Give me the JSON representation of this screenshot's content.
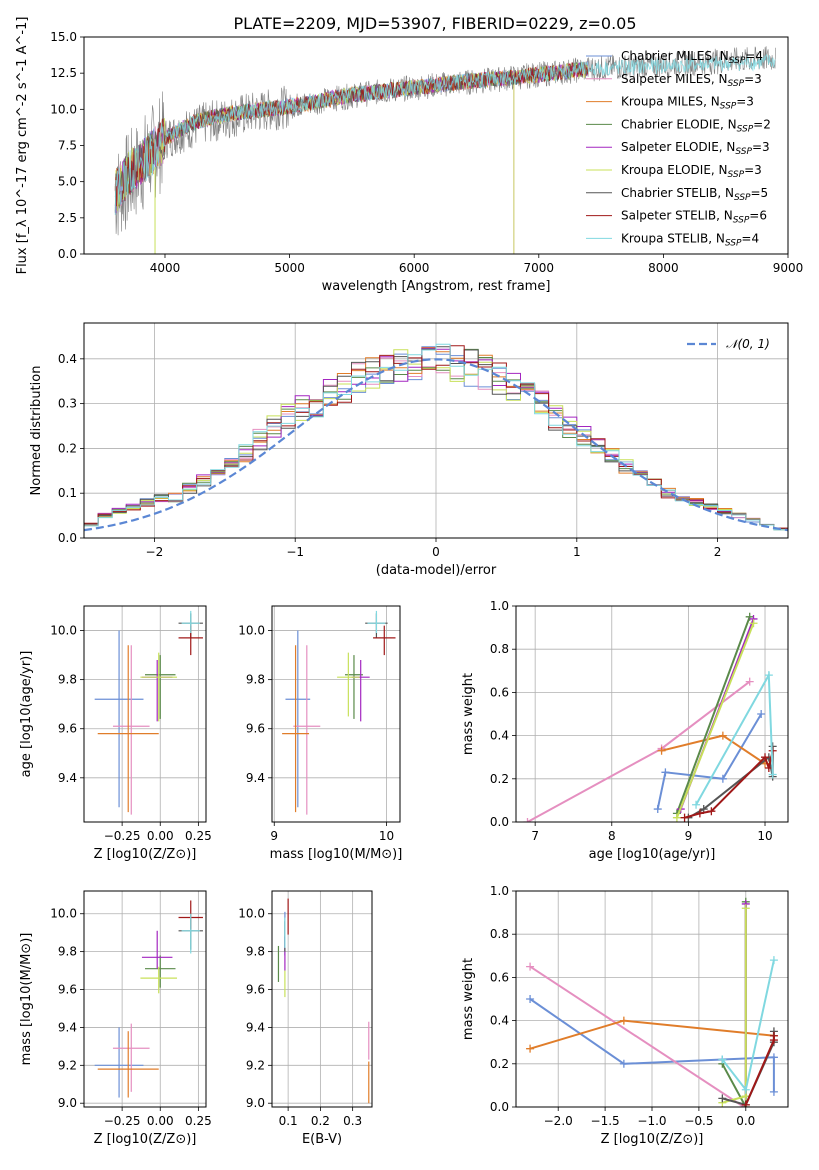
{
  "figure": {
    "title": "PLATE=2209, MJD=53907, FIBERID=0229, z=0.05",
    "colors": {
      "Chabrier MILES": "#6b8fd6",
      "Salpeter MILES": "#e58fc0",
      "Kroupa MILES": "#e07d2a",
      "Chabrier ELODIE": "#5a8a4a",
      "Salpeter ELODIE": "#a326c0",
      "Kroupa ELODIE": "#c8e05a",
      "Chabrier STELIB": "#555555",
      "Salpeter STELIB": "#a01818",
      "Kroupa STELIB": "#80d8e0",
      "data": "#808080",
      "gaussian": "#5b87d4"
    }
  },
  "chart_data": [
    {
      "id": "spectrum",
      "type": "line",
      "title": "PLATE=2209, MJD=53907, FIBERID=0229, z=0.05",
      "xlabel": "wavelength [Angstrom, rest frame]",
      "ylabel": "Flux [f_λ 10^-17 erg cm^-2 s^-1 A^-1]",
      "xlim": [
        3350,
        9000
      ],
      "ylim": [
        0,
        15
      ],
      "xticks": [
        "4000",
        "5000",
        "6000",
        "7000",
        "8000",
        "9000"
      ],
      "yticks": [
        "0.0",
        "2.5",
        "5.0",
        "7.5",
        "10.0",
        "12.5",
        "15.0"
      ],
      "legend_placement": "upper-right",
      "series": [
        {
          "name": "Chabrier MILES",
          "nssp": "4"
        },
        {
          "name": "Salpeter MILES",
          "nssp": "3"
        },
        {
          "name": "Kroupa MILES",
          "nssp": "3"
        },
        {
          "name": "Chabrier ELODIE",
          "nssp": "2"
        },
        {
          "name": "Salpeter ELODIE",
          "nssp": "3"
        },
        {
          "name": "Kroupa ELODIE",
          "nssp": "3"
        },
        {
          "name": "Chabrier STELIB",
          "nssp": "5"
        },
        {
          "name": "Salpeter STELIB",
          "nssp": "6"
        },
        {
          "name": "Kroupa STELIB",
          "nssp": "4"
        }
      ],
      "model_continuum": {
        "x": [
          3600,
          3700,
          3900,
          4000,
          4200,
          4400,
          4600,
          5000,
          5200,
          5500,
          6000,
          6500,
          6800,
          7000,
          7300,
          7400
        ],
        "y": [
          4.3,
          5.5,
          7.0,
          8.0,
          9.0,
          9.5,
          9.8,
          10.2,
          10.5,
          11.0,
          11.5,
          12.0,
          12.2,
          12.4,
          12.7,
          12.8
        ]
      },
      "data_continuum": {
        "x": [
          3600,
          3800,
          4000,
          4300,
          4600,
          5000,
          5400,
          5800,
          6200,
          6600,
          7000,
          7400,
          7800,
          8200,
          8600,
          8900
        ],
        "y": [
          4.0,
          6.0,
          8.0,
          9.0,
          9.6,
          10.2,
          10.8,
          11.3,
          11.7,
          12.0,
          12.4,
          12.8,
          13.0,
          13.2,
          13.4,
          13.5
        ]
      }
    },
    {
      "id": "residuals",
      "type": "bar",
      "xlabel": "(data-model)/error",
      "ylabel": "Normed distribution",
      "xlim": [
        -2.5,
        2.5
      ],
      "ylim": [
        0,
        0.48
      ],
      "xticks": [
        "−2",
        "−1",
        "0",
        "1",
        "2"
      ],
      "yticks": [
        "0.0",
        "0.1",
        "0.2",
        "0.3",
        "0.4"
      ],
      "bins": [
        -2.5,
        -2.4,
        -2.3,
        -2.2,
        -2.1,
        -2.0,
        -1.9,
        -1.8,
        -1.7,
        -1.6,
        -1.5,
        -1.4,
        -1.3,
        -1.2,
        -1.1,
        -1.0,
        -0.9,
        -0.8,
        -0.7,
        -0.6,
        -0.5,
        -0.4,
        -0.3,
        -0.2,
        -0.1,
        0.0,
        0.1,
        0.2,
        0.3,
        0.4,
        0.5,
        0.6,
        0.7,
        0.8,
        0.9,
        1.0,
        1.1,
        1.2,
        1.3,
        1.4,
        1.5,
        1.6,
        1.7,
        1.8,
        1.9,
        2.0,
        2.1,
        2.2,
        2.3,
        2.4,
        2.5
      ],
      "histogram_mean": [
        0.03,
        0.05,
        0.06,
        0.07,
        0.08,
        0.09,
        0.09,
        0.11,
        0.13,
        0.14,
        0.16,
        0.19,
        0.22,
        0.25,
        0.27,
        0.29,
        0.3,
        0.32,
        0.34,
        0.36,
        0.37,
        0.38,
        0.39,
        0.39,
        0.4,
        0.4,
        0.39,
        0.38,
        0.37,
        0.36,
        0.34,
        0.32,
        0.3,
        0.27,
        0.25,
        0.23,
        0.2,
        0.18,
        0.16,
        0.14,
        0.12,
        0.1,
        0.09,
        0.08,
        0.07,
        0.06,
        0.05,
        0.04,
        0.03,
        0.02
      ],
      "curve": {
        "name": "𝒩(0, 1)",
        "mu": 0,
        "sigma": 1
      }
    },
    {
      "id": "age-vs-Z",
      "type": "scatter",
      "xlabel": "Z [log10(Z/Z⊙)]",
      "ylabel": "age [log10(age/yr)]",
      "xlim": [
        -0.5,
        0.3
      ],
      "ylim": [
        9.22,
        10.1
      ],
      "xticks": [
        "−0.25",
        "0.00",
        "0.25"
      ],
      "yticks": [
        "9.4",
        "9.6",
        "9.8",
        "10.0"
      ],
      "points": [
        {
          "series": "Chabrier MILES",
          "x": -0.27,
          "y": 9.72,
          "xerr": 0.16,
          "yerr": [
            0.44,
            0.28
          ]
        },
        {
          "series": "Salpeter MILES",
          "x": -0.19,
          "y": 9.61,
          "xerr": 0.12,
          "yerr": [
            0.36,
            0.33
          ]
        },
        {
          "series": "Kroupa MILES",
          "x": -0.21,
          "y": 9.58,
          "xerr": 0.2,
          "yerr": [
            0.32,
            0.36
          ]
        },
        {
          "series": "Chabrier ELODIE",
          "x": 0.0,
          "y": 9.82,
          "xerr": 0.1,
          "yerr": [
            0.18,
            0.08
          ]
        },
        {
          "series": "Salpeter ELODIE",
          "x": -0.02,
          "y": 9.81,
          "xerr": 0.1,
          "yerr": [
            0.18,
            0.07
          ]
        },
        {
          "series": "Kroupa ELODIE",
          "x": -0.01,
          "y": 9.81,
          "xerr": 0.12,
          "yerr": [
            0.18,
            0.1
          ]
        },
        {
          "series": "Chabrier STELIB",
          "x": 0.2,
          "y": 10.03,
          "xerr": 0.08,
          "yerr": [
            0.06,
            0.04
          ]
        },
        {
          "series": "Salpeter STELIB",
          "x": 0.2,
          "y": 9.97,
          "xerr": 0.08,
          "yerr": [
            0.07,
            0.05
          ]
        },
        {
          "series": "Kroupa STELIB",
          "x": 0.2,
          "y": 10.03,
          "xerr": 0.06,
          "yerr": [
            0.04,
            0.05
          ]
        }
      ]
    },
    {
      "id": "age-vs-mass",
      "type": "scatter",
      "xlabel": "mass [log10(M/M⊙)]",
      "ylabel": "",
      "xlim": [
        8.98,
        10.12
      ],
      "ylim": [
        9.22,
        10.1
      ],
      "xticks": [
        "9",
        "10"
      ],
      "yticks": [
        "9.4",
        "9.6",
        "9.8",
        "10.0"
      ],
      "points": [
        {
          "series": "Chabrier MILES",
          "x": 9.21,
          "y": 9.72,
          "xerr": 0.11,
          "yerr": [
            0.44,
            0.28
          ]
        },
        {
          "series": "Salpeter MILES",
          "x": 9.29,
          "y": 9.61,
          "xerr": 0.12,
          "yerr": [
            0.36,
            0.33
          ]
        },
        {
          "series": "Kroupa MILES",
          "x": 9.19,
          "y": 9.58,
          "xerr": 0.12,
          "yerr": [
            0.32,
            0.36
          ]
        },
        {
          "series": "Chabrier ELODIE",
          "x": 9.71,
          "y": 9.82,
          "xerr": 0.08,
          "yerr": [
            0.18,
            0.08
          ]
        },
        {
          "series": "Salpeter ELODIE",
          "x": 9.77,
          "y": 9.81,
          "xerr": 0.08,
          "yerr": [
            0.18,
            0.07
          ]
        },
        {
          "series": "Kroupa ELODIE",
          "x": 9.66,
          "y": 9.81,
          "xerr": 0.1,
          "yerr": [
            0.16,
            0.1
          ]
        },
        {
          "series": "Chabrier STELIB",
          "x": 9.91,
          "y": 10.03,
          "xerr": 0.1,
          "yerr": [
            0.06,
            0.04
          ]
        },
        {
          "series": "Salpeter STELIB",
          "x": 9.98,
          "y": 9.97,
          "xerr": 0.1,
          "yerr": [
            0.07,
            0.05
          ]
        },
        {
          "series": "Kroupa STELIB",
          "x": 9.91,
          "y": 10.03,
          "xerr": 0.08,
          "yerr": [
            0.04,
            0.05
          ]
        }
      ]
    },
    {
      "id": "weight-vs-age",
      "type": "line",
      "xlabel": "age [log10(age/yr)]",
      "ylabel": "mass weight",
      "xlim": [
        6.75,
        10.3
      ],
      "ylim": [
        0,
        1
      ],
      "xticks": [
        "7",
        "8",
        "9",
        "10"
      ],
      "yticks": [
        "0.0",
        "0.2",
        "0.4",
        "0.6",
        "0.8",
        "1.0"
      ],
      "series": [
        {
          "name": "Chabrier MILES",
          "x": [
            8.6,
            8.7,
            9.45,
            9.95
          ],
          "y": [
            0.06,
            0.23,
            0.2,
            0.5
          ]
        },
        {
          "name": "Salpeter MILES",
          "x": [
            6.9,
            8.65,
            9.8
          ],
          "y": [
            0.0,
            0.34,
            0.65
          ]
        },
        {
          "name": "Kroupa MILES",
          "x": [
            8.65,
            9.45,
            10.0
          ],
          "y": [
            0.33,
            0.4,
            0.27
          ]
        },
        {
          "name": "Chabrier ELODIE",
          "x": [
            8.85,
            9.8
          ],
          "y": [
            0.04,
            0.95
          ]
        },
        {
          "name": "Salpeter ELODIE",
          "x": [
            8.9,
            9.85
          ],
          "y": [
            0.06,
            0.94
          ]
        },
        {
          "name": "Kroupa ELODIE",
          "x": [
            8.85,
            9.85
          ],
          "y": [
            0.02,
            0.92
          ]
        },
        {
          "name": "Chabrier STELIB",
          "x": [
            9.0,
            9.2,
            10.05,
            10.1,
            10.1
          ],
          "y": [
            0.02,
            0.06,
            0.3,
            0.21,
            0.35
          ]
        },
        {
          "name": "Salpeter STELIB",
          "x": [
            8.95,
            9.15,
            9.3,
            10.0,
            10.05,
            10.1
          ],
          "y": [
            0.02,
            0.04,
            0.05,
            0.3,
            0.25,
            0.33
          ]
        },
        {
          "name": "Kroupa STELIB",
          "x": [
            9.1,
            10.05,
            10.1
          ],
          "y": [
            0.08,
            0.68,
            0.22
          ]
        }
      ]
    },
    {
      "id": "mass-vs-Z",
      "type": "scatter",
      "xlabel": "Z [log10(Z/Z⊙)]",
      "ylabel": "mass [log10(M/M⊙)]",
      "xlim": [
        -0.5,
        0.3
      ],
      "ylim": [
        8.98,
        10.12
      ],
      "xticks": [
        "−0.25",
        "0.00",
        "0.25"
      ],
      "yticks": [
        "9.0",
        "9.2",
        "9.4",
        "9.6",
        "9.8",
        "10.0"
      ],
      "points": [
        {
          "series": "Chabrier MILES",
          "x": -0.27,
          "y": 9.2,
          "xerr": 0.16,
          "yerr": [
            0.17,
            0.2
          ]
        },
        {
          "series": "Salpeter MILES",
          "x": -0.19,
          "y": 9.29,
          "xerr": 0.12,
          "yerr": [
            0.23,
            0.13
          ]
        },
        {
          "series": "Kroupa MILES",
          "x": -0.21,
          "y": 9.18,
          "xerr": 0.2,
          "yerr": [
            0.15,
            0.2
          ]
        },
        {
          "series": "Chabrier ELODIE",
          "x": 0.0,
          "y": 9.71,
          "xerr": 0.1,
          "yerr": [
            0.1,
            0.07
          ]
        },
        {
          "series": "Salpeter ELODIE",
          "x": -0.02,
          "y": 9.77,
          "xerr": 0.1,
          "yerr": [
            0.06,
            0.14
          ]
        },
        {
          "series": "Kroupa ELODIE",
          "x": -0.01,
          "y": 9.66,
          "xerr": 0.12,
          "yerr": [
            0.08,
            0.06
          ]
        },
        {
          "series": "Chabrier STELIB",
          "x": 0.2,
          "y": 9.91,
          "xerr": 0.08,
          "yerr": [
            0.1,
            0.06
          ]
        },
        {
          "series": "Salpeter STELIB",
          "x": 0.2,
          "y": 9.98,
          "xerr": 0.08,
          "yerr": [
            0.06,
            0.09
          ]
        },
        {
          "series": "Kroupa STELIB",
          "x": 0.2,
          "y": 9.91,
          "xerr": 0.06,
          "yerr": [
            0.12,
            0.09
          ]
        }
      ]
    },
    {
      "id": "mass-vs-ebv",
      "type": "scatter",
      "xlabel": "E(B-V)",
      "ylabel": "",
      "xlim": [
        0.05,
        0.36
      ],
      "ylim": [
        8.98,
        10.12
      ],
      "xticks": [
        "0.1",
        "0.2",
        "0.3"
      ],
      "yticks": [
        "9.0",
        "9.2",
        "9.4",
        "9.6",
        "9.8",
        "10.0"
      ],
      "points": [
        {
          "series": "Chabrier MILES",
          "x": 0.09,
          "y": 9.88,
          "xerr": 0.0,
          "yerr": [
            0.1,
            0.13
          ]
        },
        {
          "series": "Salpeter MILES",
          "x": 0.35,
          "y": 9.33,
          "xerr": 0.0,
          "yerr": [
            0.1,
            0.1
          ]
        },
        {
          "series": "Kroupa MILES",
          "x": 0.35,
          "y": 9.1,
          "xerr": 0.0,
          "yerr": [
            0.1,
            0.12
          ]
        },
        {
          "series": "Chabrier ELODIE",
          "x": 0.07,
          "y": 9.74,
          "xerr": 0.0,
          "yerr": [
            0.1,
            0.09
          ]
        },
        {
          "series": "Salpeter ELODIE",
          "x": 0.09,
          "y": 9.78,
          "xerr": 0.0,
          "yerr": [
            0.08,
            0.1
          ]
        },
        {
          "series": "Kroupa ELODIE",
          "x": 0.09,
          "y": 9.64,
          "xerr": 0.0,
          "yerr": [
            0.08,
            0.06
          ]
        },
        {
          "series": "Chabrier STELIB",
          "x": 0.09,
          "y": 9.9,
          "xerr": 0.0,
          "yerr": [
            0.1,
            0.06
          ]
        },
        {
          "series": "Salpeter STELIB",
          "x": 0.1,
          "y": 9.98,
          "xerr": 0.0,
          "yerr": [
            0.09,
            0.1
          ]
        },
        {
          "series": "Kroupa STELIB",
          "x": 0.09,
          "y": 9.92,
          "xerr": 0.0,
          "yerr": [
            0.1,
            0.06
          ]
        }
      ]
    },
    {
      "id": "weight-vs-Z",
      "type": "line",
      "xlabel": "Z [log10(Z/Z⊙)]",
      "ylabel": "mass weight",
      "xlim": [
        -2.45,
        0.45
      ],
      "ylim": [
        0,
        1
      ],
      "xticks": [
        "−2.0",
        "−1.5",
        "−1.0",
        "−0.5",
        "0.0"
      ],
      "yticks": [
        "0.0",
        "0.2",
        "0.4",
        "0.6",
        "0.8",
        "1.0"
      ],
      "series": [
        {
          "name": "Chabrier MILES",
          "x": [
            -2.3,
            -1.3,
            -0.25,
            0.3,
            0.3
          ],
          "y": [
            0.5,
            0.2,
            0.22,
            0.23,
            0.07
          ]
        },
        {
          "name": "Salpeter MILES",
          "x": [
            -2.3,
            -0.02
          ],
          "y": [
            0.65,
            0.0
          ]
        },
        {
          "name": "Kroupa MILES",
          "x": [
            -2.3,
            -1.3,
            0.3
          ],
          "y": [
            0.27,
            0.4,
            0.33
          ]
        },
        {
          "name": "Chabrier ELODIE",
          "x": [
            -0.25,
            0.0,
            0.0
          ],
          "y": [
            0.2,
            0.0,
            0.95
          ]
        },
        {
          "name": "Salpeter ELODIE",
          "x": [
            0.0,
            0.0
          ],
          "y": [
            0.05,
            0.94
          ]
        },
        {
          "name": "Kroupa ELODIE",
          "x": [
            -0.25,
            0.0,
            0.0
          ],
          "y": [
            0.02,
            0.05,
            0.92
          ]
        },
        {
          "name": "Chabrier STELIB",
          "x": [
            -0.25,
            0.0,
            0.3,
            0.3
          ],
          "y": [
            0.04,
            0.01,
            0.3,
            0.35
          ]
        },
        {
          "name": "Salpeter STELIB",
          "x": [
            0.0,
            0.3,
            0.3
          ],
          "y": [
            0.01,
            0.31,
            0.33
          ]
        },
        {
          "name": "Kroupa STELIB",
          "x": [
            -0.25,
            0.0,
            0.3
          ],
          "y": [
            0.22,
            0.08,
            0.68
          ]
        }
      ]
    }
  ]
}
